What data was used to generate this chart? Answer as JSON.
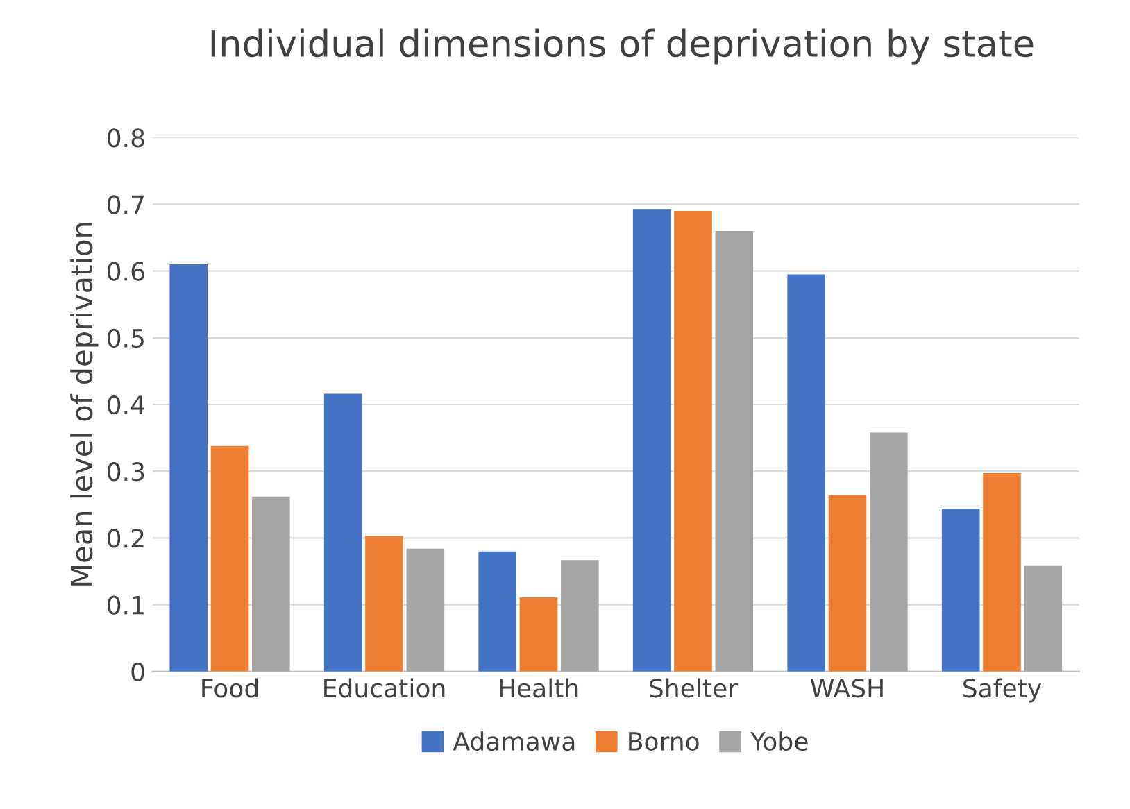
{
  "chart_data": {
    "type": "bar",
    "title": "Individual dimensions of deprivation by state",
    "ylabel": "Mean level of deprivation",
    "categories": [
      "Food",
      "Education",
      "Health",
      "Shelter",
      "WASH",
      "Safety"
    ],
    "series": [
      {
        "name": "Adamawa",
        "color": "#4472c4",
        "values": [
          0.61,
          0.416,
          0.18,
          0.693,
          0.595,
          0.244
        ]
      },
      {
        "name": "Borno",
        "color": "#ed7d31",
        "values": [
          0.338,
          0.203,
          0.111,
          0.69,
          0.264,
          0.297
        ]
      },
      {
        "name": "Yobe",
        "color": "#a5a5a5",
        "values": [
          0.262,
          0.184,
          0.167,
          0.66,
          0.358,
          0.158
        ]
      }
    ],
    "ylim": [
      0,
      0.8
    ],
    "yticks": [
      {
        "value": 0,
        "label": "0"
      },
      0.1,
      0.2,
      0.3,
      0.4,
      0.5,
      0.6,
      0.7,
      0.8
    ],
    "grid": "y",
    "legend": "bottom"
  }
}
